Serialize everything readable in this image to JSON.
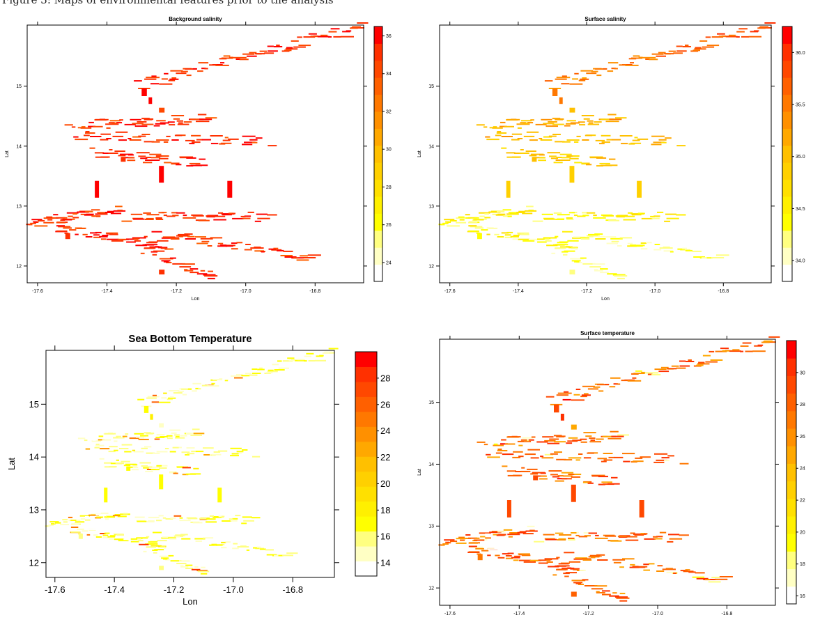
{
  "caption": "Figure 3: Maps of environmental features prior to the analysis",
  "colors": {
    "ramp": [
      "#ffffff",
      "#ffffc4",
      "#ffff80",
      "#ffff00",
      "#fff000",
      "#ffe000",
      "#ffd000",
      "#ffc000",
      "#ffa800",
      "#ff9000",
      "#ff7800",
      "#ff6000",
      "#ff4800",
      "#ff3000",
      "#ff0000"
    ],
    "axis": "#000000"
  },
  "chart_data": [
    {
      "type": "heatmap",
      "title": "Background salinity",
      "xlabel": "Lon",
      "ylabel": "Lat",
      "xlim": [
        -17.63,
        -16.66
      ],
      "ylim": [
        11.72,
        16.02
      ],
      "x_ticks": [
        -17.6,
        -17.4,
        -17.2,
        -17.0,
        -16.8
      ],
      "x_tick_labels": [
        "-17.6",
        "-17.4",
        "-17.2",
        "-17.0",
        "-16.8"
      ],
      "y_ticks": [
        12,
        13,
        14,
        15
      ],
      "y_tick_labels": [
        "12",
        "13",
        "14",
        "15"
      ],
      "colorbar_range": [
        23,
        36.5
      ],
      "colorbar_ticks": [
        24,
        26,
        28,
        30,
        32,
        34,
        36
      ],
      "colorbar_tick_labels": [
        "24",
        "26",
        "28",
        "30",
        "32",
        "34",
        "36"
      ],
      "value_model": "background"
    },
    {
      "type": "heatmap",
      "title": "Surface salinity",
      "xlabel": "Lon",
      "ylabel": "Lat",
      "xlim": [
        -17.63,
        -16.66
      ],
      "ylim": [
        11.72,
        16.02
      ],
      "x_ticks": [
        -17.6,
        -17.4,
        -17.2,
        -17.0,
        -16.8
      ],
      "x_tick_labels": [
        "-17.6",
        "-17.4",
        "-17.2",
        "-17.0",
        "-16.8"
      ],
      "y_ticks": [
        12,
        13,
        14,
        15
      ],
      "y_tick_labels": [
        "12",
        "13",
        "14",
        "15"
      ],
      "colorbar_range": [
        33.8,
        36.25
      ],
      "colorbar_ticks": [
        34.0,
        34.5,
        35.0,
        35.5,
        36.0
      ],
      "colorbar_tick_labels": [
        "34.0",
        "34.5",
        "35.0",
        "35.5",
        "36.0"
      ],
      "value_model": "surface_salinity"
    },
    {
      "type": "heatmap",
      "title": "Sea Bottom Temperature",
      "xlabel": "Lon",
      "ylabel": "Lat",
      "xlim": [
        -17.63,
        -16.66
      ],
      "ylim": [
        11.72,
        16.02
      ],
      "x_ticks": [
        -17.6,
        -17.4,
        -17.2,
        -17.0,
        -16.8
      ],
      "x_tick_labels": [
        "-17.6",
        "-17.4",
        "-17.2",
        "-17.0",
        "-16.8"
      ],
      "y_ticks": [
        12,
        13,
        14,
        15
      ],
      "y_tick_labels": [
        "12",
        "13",
        "14",
        "15"
      ],
      "colorbar_range": [
        13,
        30
      ],
      "colorbar_ticks": [
        14,
        16,
        18,
        20,
        22,
        24,
        26,
        28
      ],
      "colorbar_tick_labels": [
        "14",
        "16",
        "18",
        "20",
        "22",
        "24",
        "26",
        "28"
      ],
      "value_model": "bottom_temperature"
    },
    {
      "type": "heatmap",
      "title": "Surface temperature",
      "xlabel": "Lon",
      "ylabel": "Lat",
      "xlim": [
        -17.63,
        -16.66
      ],
      "ylim": [
        11.72,
        16.02
      ],
      "x_ticks": [
        -17.6,
        -17.4,
        -17.2,
        -17.0,
        -16.8
      ],
      "x_tick_labels": [
        "-17.6",
        "-17.4",
        "-17.2",
        "-17.0",
        "-16.8"
      ],
      "y_ticks": [
        12,
        13,
        14,
        15
      ],
      "y_tick_labels": [
        "12",
        "13",
        "14",
        "15"
      ],
      "colorbar_range": [
        15.5,
        32
      ],
      "colorbar_ticks": [
        16,
        18,
        20,
        22,
        24,
        26,
        28,
        30
      ],
      "colorbar_tick_labels": [
        "16",
        "18",
        "20",
        "22",
        "24",
        "26",
        "28",
        "30"
      ],
      "value_model": "surface_temperature"
    }
  ],
  "tracks": [
    {
      "lon0": -17.32,
      "lat0": 15.03,
      "lon1": -16.68,
      "lat1": 15.99,
      "n": 70
    },
    {
      "lon0": -17.51,
      "lat0": 14.35,
      "lon1": -17.12,
      "lat1": 14.46,
      "n": 45
    },
    {
      "lon0": -17.5,
      "lat0": 14.18,
      "lon1": -16.95,
      "lat1": 14.08,
      "n": 45
    },
    {
      "lon0": -17.44,
      "lat0": 13.9,
      "lon1": -17.14,
      "lat1": 13.71,
      "n": 38
    },
    {
      "lon0": -17.63,
      "lat0": 12.72,
      "lon1": -17.38,
      "lat1": 12.93,
      "n": 45
    },
    {
      "lon0": -17.56,
      "lat0": 12.64,
      "lon1": -17.22,
      "lat1": 12.35,
      "n": 45
    },
    {
      "lon0": -17.35,
      "lat0": 12.82,
      "lon1": -16.95,
      "lat1": 12.82,
      "n": 42
    },
    {
      "lon0": -17.26,
      "lat0": 12.55,
      "lon1": -16.82,
      "lat1": 12.16,
      "n": 45
    },
    {
      "lon0": -17.31,
      "lat0": 12.3,
      "lon1": -17.1,
      "lat1": 11.82,
      "n": 25
    }
  ],
  "blocks": [
    {
      "lon": -17.435,
      "lat": 13.28,
      "w": 0.012,
      "h": 0.28
    },
    {
      "lon": -17.053,
      "lat": 13.28,
      "w": 0.014,
      "h": 0.28
    },
    {
      "lon": -17.25,
      "lat": 13.53,
      "w": 0.014,
      "h": 0.28
    },
    {
      "lon": -17.3,
      "lat": 14.9,
      "w": 0.015,
      "h": 0.13
    },
    {
      "lon": -17.25,
      "lat": 14.6,
      "w": 0.016,
      "h": 0.08
    },
    {
      "lon": -17.28,
      "lat": 14.76,
      "w": 0.01,
      "h": 0.11
    },
    {
      "lon": -17.52,
      "lat": 12.5,
      "w": 0.014,
      "h": 0.1
    },
    {
      "lon": -17.25,
      "lat": 11.9,
      "w": 0.016,
      "h": 0.08
    },
    {
      "lon": -17.36,
      "lat": 13.78,
      "w": 0.014,
      "h": 0.08
    }
  ]
}
